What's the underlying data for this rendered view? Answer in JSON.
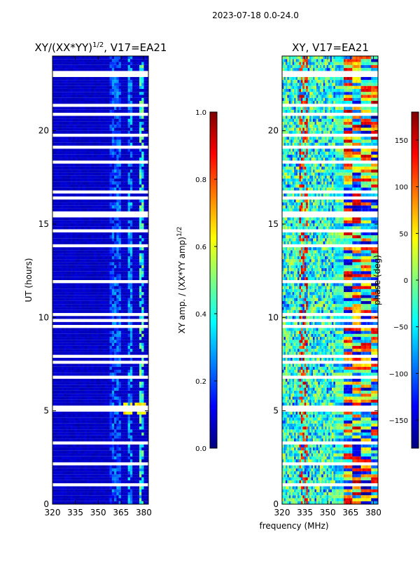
{
  "suptitle": "2023-07-18 0.0-24.0",
  "colors": {
    "background": "#ffffff",
    "axis": "#000000",
    "gap": "#ffffff",
    "jet": [
      "#00007f",
      "#0000ff",
      "#007fff",
      "#00ffff",
      "#7fff7f",
      "#ffff00",
      "#ff7f00",
      "#ff0000",
      "#7f0000"
    ]
  },
  "chart_data": [
    {
      "type": "heatmap",
      "title_main": "XY/(XX*YY)",
      "title_sup": "1/2",
      "title_rest": ", V17=EA21",
      "xlabel": "",
      "ylabel": "UT (hours)",
      "xlim": [
        320,
        383
      ],
      "ylim": [
        0,
        24
      ],
      "xticks": [
        "320",
        "335",
        "350",
        "365",
        "380"
      ],
      "xtick_values": [
        320,
        335,
        350,
        365,
        380
      ],
      "yticks": [
        "0",
        "5",
        "10",
        "15",
        "20"
      ],
      "ytick_values": [
        0,
        5,
        10,
        15,
        20
      ],
      "colorbar": {
        "label_main": "XY amp. / (XX*YY amp)",
        "label_sup": "1/2",
        "range": [
          0.0,
          1.0
        ],
        "ticks": [
          "0.0",
          "0.2",
          "0.4",
          "0.6",
          "0.8",
          "1.0"
        ],
        "tick_values": [
          0.0,
          0.2,
          0.4,
          0.6,
          0.8,
          1.0
        ]
      },
      "description_values": {
        "background_level": 0.05,
        "band_features": [
          {
            "freq": [
              357,
              359
            ],
            "level": 0.2
          },
          {
            "freq": [
              359,
              365
            ],
            "level": 0.25
          },
          {
            "freq": [
              370,
              373
            ],
            "level": 0.3
          },
          {
            "freq": [
              377,
              380
            ],
            "level": 0.45
          }
        ]
      }
    },
    {
      "type": "heatmap",
      "title": "XY, V17=EA21",
      "xlabel": "frequency (MHz)",
      "ylabel": "",
      "xlim": [
        320,
        383
      ],
      "ylim": [
        0,
        24
      ],
      "xticks": [
        "320",
        "335",
        "350",
        "365",
        "380"
      ],
      "xtick_values": [
        320,
        335,
        350,
        365,
        380
      ],
      "yticks": [
        "0",
        "5",
        "10",
        "15",
        "20"
      ],
      "ytick_values": [
        0,
        5,
        10,
        15,
        20
      ],
      "colorbar": {
        "label": "phase (deg)",
        "range": [
          -180,
          180
        ],
        "ticks": [
          "−150",
          "−100",
          "−50",
          "0",
          "50",
          "100",
          "150"
        ],
        "tick_values": [
          -150,
          -100,
          -50,
          0,
          50,
          100,
          150
        ]
      },
      "description_values": {
        "noise_band": [
          320,
          355
        ],
        "hot_band": [
          331,
          337
        ],
        "structured_band": [
          360,
          383
        ]
      }
    }
  ]
}
